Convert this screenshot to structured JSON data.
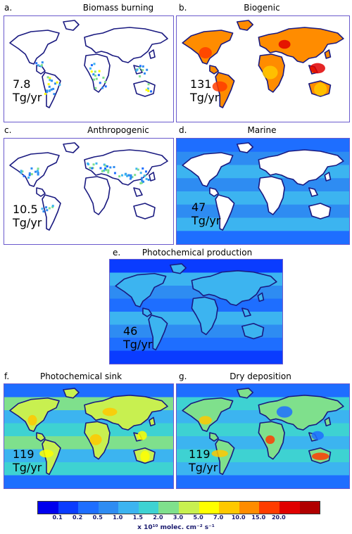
{
  "panels": [
    {
      "letter": "a.",
      "title": "Biomass burning",
      "total": "7.8",
      "unit": "Tg/yr",
      "style": "sparse-biomass"
    },
    {
      "letter": "b.",
      "title": "Biogenic",
      "total": "131",
      "unit": "Tg/yr",
      "style": "land-hot"
    },
    {
      "letter": "c.",
      "title": "Anthropogenic",
      "total": "10.5",
      "unit": "Tg/yr",
      "style": "sparse-anthro"
    },
    {
      "letter": "d.",
      "title": "Marine",
      "total": "47",
      "unit": "Tg/yr",
      "style": "ocean-only"
    },
    {
      "letter": "e.",
      "title": "Photochemical production",
      "total": "46",
      "unit": "Tg/yr",
      "style": "global-cool"
    },
    {
      "letter": "f.",
      "title": "Photochemical sink",
      "total": "119",
      "unit": "Tg/yr",
      "style": "global-warm"
    },
    {
      "letter": "g.",
      "title": "Dry deposition",
      "total": "119",
      "unit": "Tg/yr",
      "style": "land-dry"
    }
  ],
  "colorbar": {
    "colors": [
      "#0000ee",
      "#0a3cff",
      "#1e6eff",
      "#2e8cf2",
      "#3cb4f0",
      "#3ed2d2",
      "#7fe08c",
      "#c8f050",
      "#ffff00",
      "#ffc800",
      "#ff8c00",
      "#ff3c00",
      "#e00000",
      "#b00000"
    ],
    "ticks": [
      "0.1",
      "0.2",
      "0.5",
      "1.0",
      "1.5",
      "2.0",
      "3.0",
      "5.0",
      "7.0",
      "10.0",
      "15.0",
      "20.0"
    ],
    "units_label": "x 10¹⁰ molec. cm⁻² s⁻¹"
  }
}
